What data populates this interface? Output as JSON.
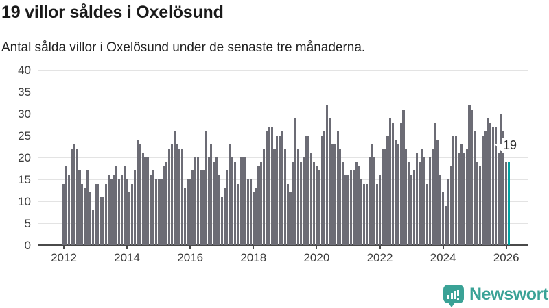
{
  "header": {
    "title": "19 villor såldes i Oxelösund",
    "subtitle": "Antal sålda villor i Oxelösund under de senaste tre månaderna."
  },
  "chart_data": {
    "type": "bar",
    "title": "19 villor såldes i Oxelösund",
    "subtitle": "Antal sålda villor i Oxelösund under de senaste tre månaderna.",
    "unit": "sålda villor (rullande tre månader)",
    "frequency": "monthly",
    "start_month": "2012-01",
    "end_month": "2026-02",
    "values": [
      14,
      18,
      16,
      22,
      23,
      22,
      17,
      14,
      13,
      17,
      12,
      8,
      14,
      14,
      11,
      11,
      14,
      16,
      15,
      16,
      18,
      15,
      16,
      18,
      15,
      12,
      14,
      17,
      24,
      23,
      21,
      20,
      20,
      16,
      17,
      15,
      15,
      15,
      18,
      19,
      22,
      23,
      26,
      23,
      22,
      22,
      13,
      15,
      15,
      17,
      20,
      20,
      17,
      17,
      26,
      20,
      23,
      19,
      20,
      16,
      11,
      13,
      17,
      23,
      20,
      19,
      14,
      20,
      20,
      20,
      15,
      15,
      12,
      13,
      18,
      19,
      22,
      26,
      27,
      27,
      22,
      25,
      25,
      26,
      22,
      14,
      12,
      19,
      29,
      22,
      19,
      20,
      25,
      25,
      21,
      19,
      18,
      17,
      25,
      26,
      32,
      29,
      23,
      23,
      26,
      22,
      19,
      16,
      16,
      17,
      17,
      19,
      18,
      15,
      14,
      14,
      20,
      23,
      20,
      14,
      16,
      22,
      22,
      25,
      29,
      28,
      24,
      23,
      28,
      31,
      22,
      19,
      16,
      17,
      21,
      19,
      22,
      20,
      14,
      20,
      22,
      28,
      24,
      16,
      12,
      9,
      15,
      18,
      25,
      25,
      21,
      23,
      21,
      22,
      32,
      31,
      26,
      19,
      18,
      25,
      26,
      29,
      28,
      27,
      27,
      21,
      30,
      26,
      19,
      19
    ],
    "highlight": {
      "index": 169,
      "value": 19,
      "label": "19",
      "color": "#00a2a2"
    },
    "bar_color": "#6c6c75",
    "grid": true,
    "ylim": [
      0,
      40
    ],
    "y_ticks": [
      0,
      5,
      10,
      15,
      20,
      25,
      30,
      35,
      40
    ],
    "x_tick_labels": [
      "2012",
      "2014",
      "2016",
      "2018",
      "2020",
      "2022",
      "2024",
      "2026"
    ],
    "legend_position": "none"
  },
  "footer": {
    "brand": "Newsworthy"
  }
}
